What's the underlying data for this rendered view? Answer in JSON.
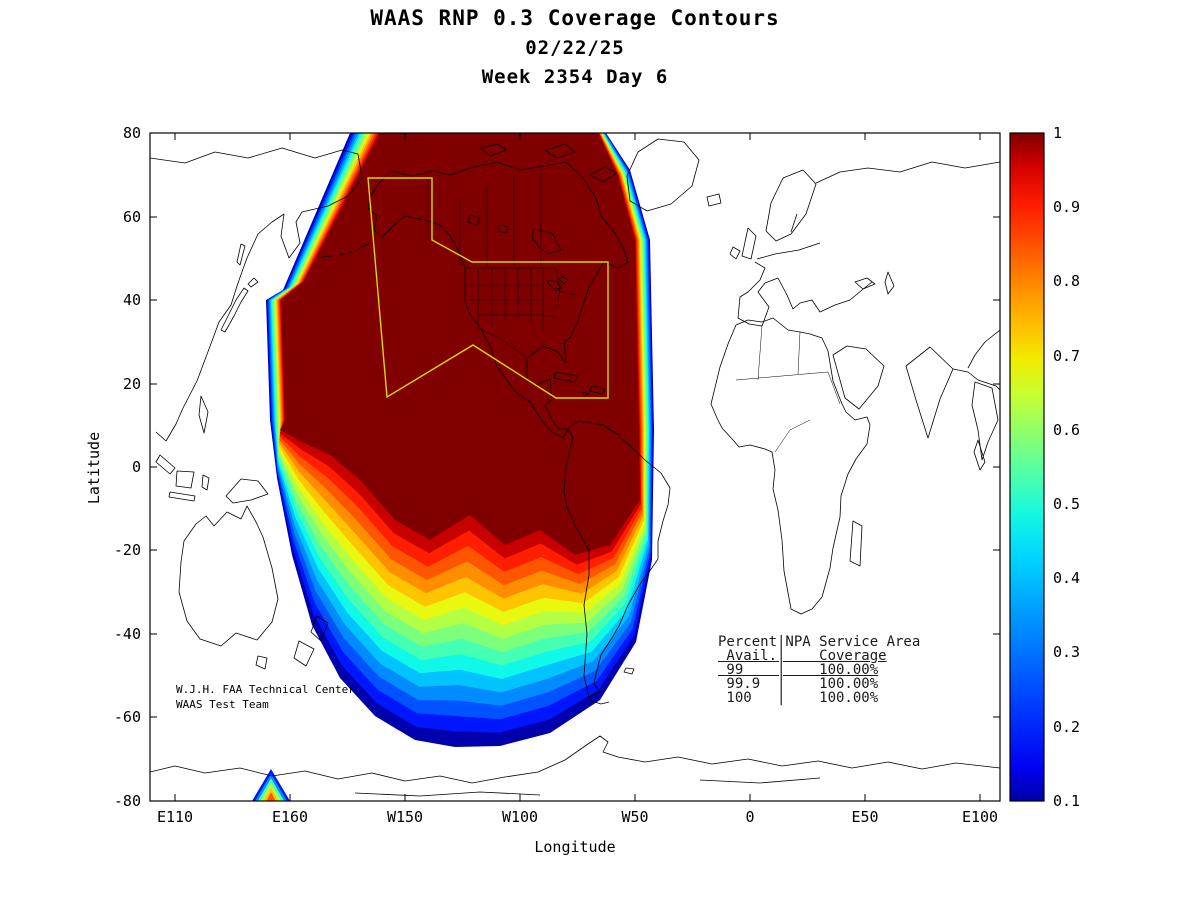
{
  "header": {
    "title": "WAAS RNP 0.3 Coverage Contours",
    "date": "02/22/25",
    "week": "Week 2354 Day 6"
  },
  "axes": {
    "xlabel": "Longitude",
    "ylabel": "Latitude",
    "xticks": [
      "E110",
      "E160",
      "W150",
      "W100",
      "W50",
      "0",
      "E50",
      "E100"
    ],
    "yticks": [
      "80",
      "60",
      "40",
      "20",
      "0",
      "-20",
      "-40",
      "-60",
      "-80"
    ]
  },
  "colorbar": {
    "ticks": [
      "1",
      "0.9",
      "0.8",
      "0.7",
      "0.6",
      "0.5",
      "0.4",
      "0.3",
      "0.2",
      "0.1"
    ]
  },
  "annotations": {
    "credit1": "W.J.H. FAA Technical Center",
    "credit2": "WAAS Test Team"
  },
  "coverage_table": {
    "col1_header1": "Percent",
    "col1_header2": "Avail.",
    "col2_header1": "NPA Service Area",
    "col2_header2": "Coverage",
    "rows": [
      [
        "99",
        "100.00%"
      ],
      [
        "99.9",
        "100.00%"
      ],
      [
        "100",
        "100.00%"
      ]
    ]
  },
  "chart_data": {
    "type": "heatmap",
    "title": "WAAS RNP 0.3 Coverage Contours - 02/22/25 - Week 2354 Day 6",
    "xlabel": "Longitude",
    "ylabel": "Latitude",
    "x_ticks": [
      "E110",
      "E160",
      "W150",
      "W100",
      "W50",
      "0",
      "E50",
      "E100"
    ],
    "y_ticks": [
      80,
      60,
      40,
      20,
      0,
      -20,
      -40,
      -60,
      -80
    ],
    "colorbar": {
      "min": 0.1,
      "max": 1,
      "ticks": [
        1,
        0.9,
        0.8,
        0.7,
        0.6,
        0.5,
        0.4,
        0.3,
        0.2,
        0.1
      ],
      "stops": [
        {
          "offset": 0.0,
          "color": "#0000A8"
        },
        {
          "offset": 0.05,
          "color": "#0000F0"
        },
        {
          "offset": 0.13,
          "color": "#0033FF"
        },
        {
          "offset": 0.22,
          "color": "#0072FF"
        },
        {
          "offset": 0.3,
          "color": "#00A8FF"
        },
        {
          "offset": 0.37,
          "color": "#00D8FF"
        },
        {
          "offset": 0.43,
          "color": "#16F8E0"
        },
        {
          "offset": 0.49,
          "color": "#50FFA8"
        },
        {
          "offset": 0.55,
          "color": "#8CFF6C"
        },
        {
          "offset": 0.61,
          "color": "#C8FF30"
        },
        {
          "offset": 0.66,
          "color": "#F0EC00"
        },
        {
          "offset": 0.71,
          "color": "#FFC000"
        },
        {
          "offset": 0.77,
          "color": "#FF8C00"
        },
        {
          "offset": 0.83,
          "color": "#FF5400"
        },
        {
          "offset": 0.89,
          "color": "#FF1E00"
        },
        {
          "offset": 0.95,
          "color": "#D40000"
        },
        {
          "offset": 1.0,
          "color": "#7F0000"
        }
      ]
    },
    "contour_levels": [
      {
        "value": 0.1,
        "color": "#0000AD"
      },
      {
        "value": 0.16,
        "color": "#0016FF"
      },
      {
        "value": 0.22,
        "color": "#0053FF"
      },
      {
        "value": 0.28,
        "color": "#008CFF"
      },
      {
        "value": 0.34,
        "color": "#00C3FF"
      },
      {
        "value": 0.4,
        "color": "#0FF8E8"
      },
      {
        "value": 0.46,
        "color": "#45FFB2"
      },
      {
        "value": 0.52,
        "color": "#7CFF7B"
      },
      {
        "value": 0.58,
        "color": "#B2FF45"
      },
      {
        "value": 0.64,
        "color": "#E8F80F"
      },
      {
        "value": 0.7,
        "color": "#FFC400"
      },
      {
        "value": 0.76,
        "color": "#FF8D00"
      },
      {
        "value": 0.82,
        "color": "#FF5500"
      },
      {
        "value": 0.88,
        "color": "#FF1E00"
      },
      {
        "value": 0.94,
        "color": "#C90000"
      },
      {
        "value": 1.0,
        "color": "#800000"
      }
    ],
    "npa_service_area": {
      "outline_color": "#D8D800",
      "coverage_rows": [
        {
          "percent_avail": "99",
          "coverage": "100.00%"
        },
        {
          "percent_avail": "99.9",
          "coverage": "100.00%"
        },
        {
          "percent_avail": "100",
          "coverage": "100.00%"
        }
      ]
    },
    "notes": "Filled RNP 0.3 availability contours over the Pacific and the Americas; dark red core = 1.0 availability, rainbow bands fall off to 0.1 toward the southern Pacific; small secondary coverage spot near 73S 155E."
  }
}
